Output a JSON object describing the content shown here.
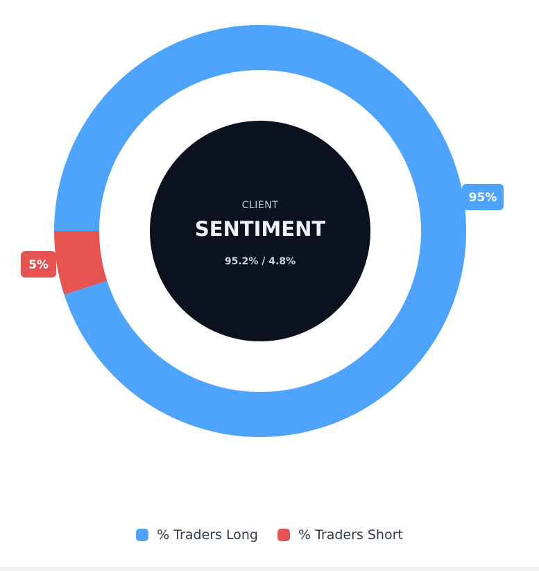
{
  "chart_data": {
    "type": "pie",
    "variant": "doughnut",
    "categories": [
      "% Traders Long",
      "% Traders Short"
    ],
    "values": [
      95,
      5
    ],
    "data_labels": [
      "95%",
      "5%"
    ],
    "colors": [
      "#4ea3fc",
      "#e55353"
    ],
    "legend_position": "bottom",
    "center": {
      "eyebrow": "CLIENT",
      "title": "SENTIMENT",
      "subtitle": "95.2% / 4.8%",
      "background": "#0c1120"
    }
  }
}
